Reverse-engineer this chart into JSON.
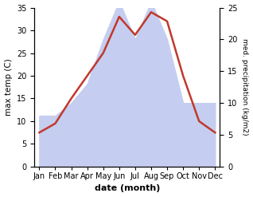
{
  "months": [
    "Jan",
    "Feb",
    "Mar",
    "Apr",
    "May",
    "Jun",
    "Jul",
    "Aug",
    "Sep",
    "Oct",
    "Nov",
    "Dec"
  ],
  "month_indices": [
    0,
    1,
    2,
    3,
    4,
    5,
    6,
    7,
    8,
    9,
    10,
    11
  ],
  "temperature": [
    7.5,
    9.5,
    15.0,
    20.0,
    25.0,
    33.0,
    29.0,
    34.0,
    32.0,
    20.0,
    10.0,
    7.5
  ],
  "precipitation_kg": [
    8.0,
    8.0,
    10.0,
    13.0,
    20.0,
    26.0,
    20.0,
    26.0,
    20.0,
    10.0,
    10.0,
    10.0
  ],
  "temp_color": "#c0392b",
  "precip_fill_color": "#c5cef0",
  "left_ylim": [
    0,
    35
  ],
  "right_ylim": [
    0,
    25
  ],
  "left_yticks": [
    0,
    5,
    10,
    15,
    20,
    25,
    30,
    35
  ],
  "right_yticks": [
    0,
    5,
    10,
    15,
    20,
    25
  ],
  "xlabel": "date (month)",
  "ylabel_left": "max temp (C)",
  "ylabel_right": "med. precipitation (kg/m2)",
  "bg_color": "#ffffff"
}
